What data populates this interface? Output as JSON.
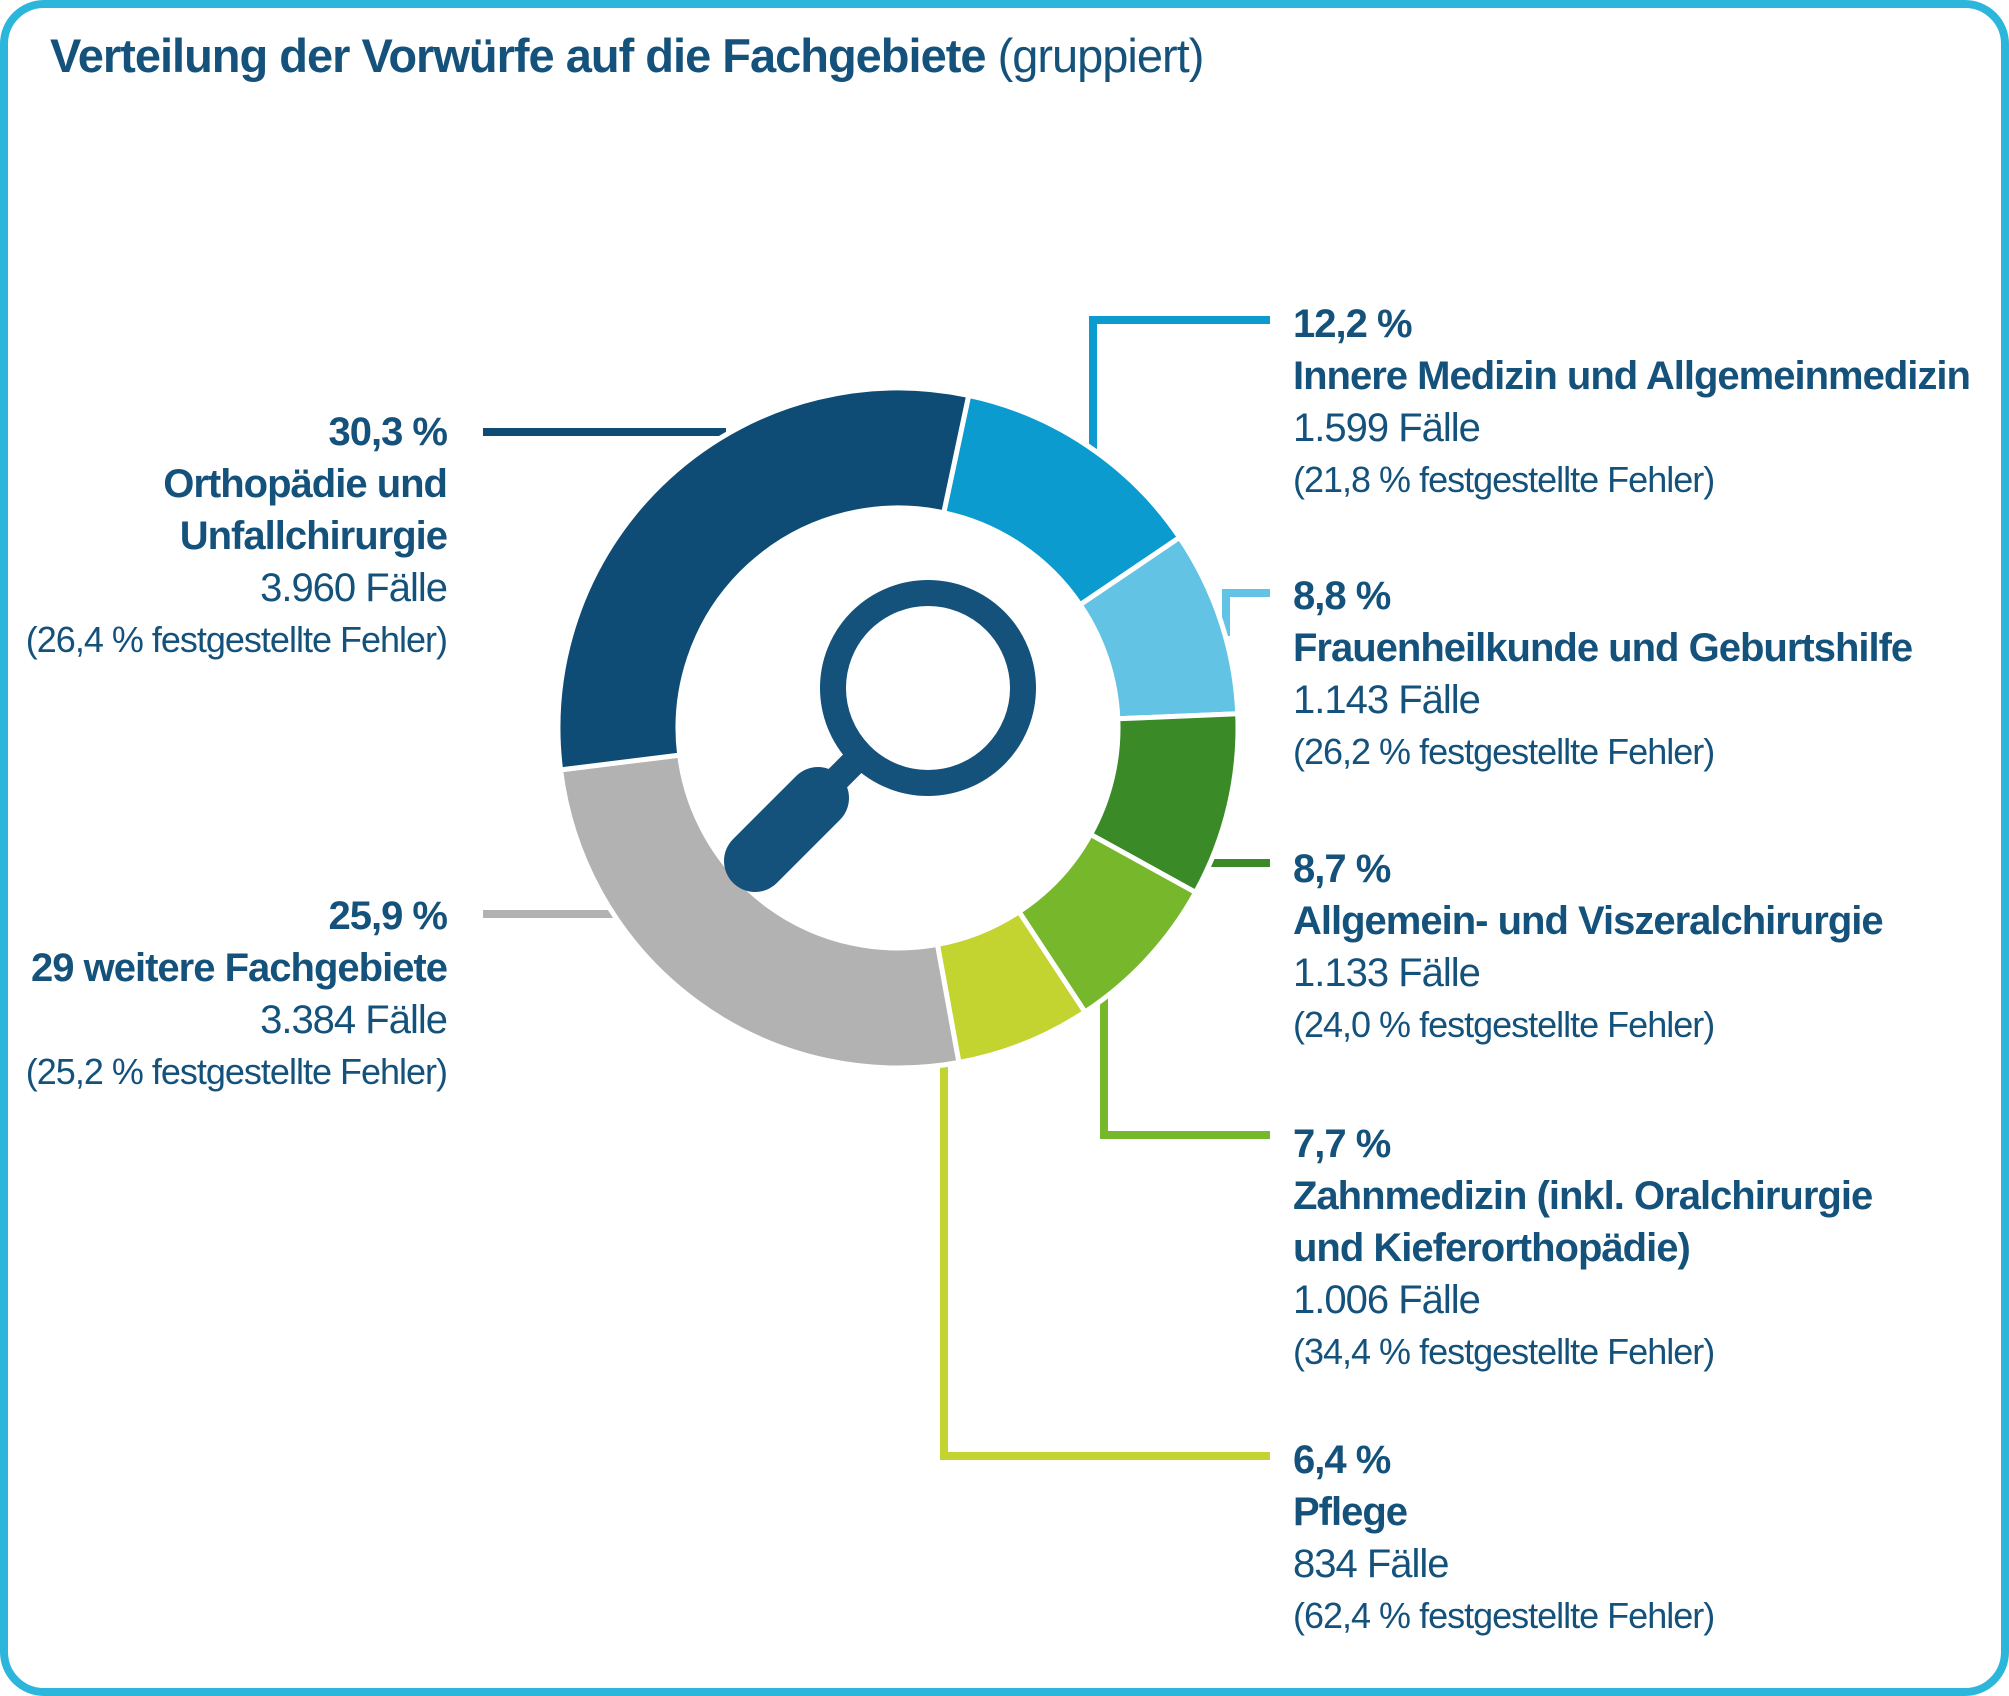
{
  "title": {
    "main": "Verteilung der Vorwürfe auf die Fachgebiete",
    "suffix": " (gruppiert)"
  },
  "card": {
    "border_color": "#2CB6DC",
    "background": "#ffffff",
    "text_color": "#14527C"
  },
  "center_icon": "magnifier-icon",
  "chart_data": {
    "type": "pie",
    "subtype": "donut",
    "title": "Verteilung der Vorwürfe auf die Fachgebiete (gruppiert)",
    "start_angle_deg": 12,
    "legend_position": "callout-labels",
    "segments": [
      {
        "label": "Innere Medizin und Allgemeinmedizin",
        "name": "Innere Medizin und Allgemeinmedizin",
        "pct": 12.2,
        "pct_label": "12,2 %",
        "cases": 1599,
        "cases_label": "1.599 Fälle",
        "error_label": "(21,8 % festgestellte Fehler)",
        "color": "#0B9BCE"
      },
      {
        "label": "Frauenheilkunde und Geburtshilfe",
        "name": "Frauenheilkunde und Geburtshilfe",
        "pct": 8.8,
        "pct_label": "8,8 %",
        "cases": 1143,
        "cases_label": "1.143 Fälle",
        "error_label": "(26,2 % festgestellte Fehler)",
        "color": "#63C3E4"
      },
      {
        "label": "Allgemein- und Viszeralchirurgie",
        "name": "Allgemein- und Viszeralchirurgie",
        "pct": 8.7,
        "pct_label": "8,7 %",
        "cases": 1133,
        "cases_label": "1.133 Fälle",
        "error_label": "(24,0 % festgestellte Fehler)",
        "color": "#3A8B28"
      },
      {
        "label": "Zahnmedizin (inkl. Oralchirurgie und Kieferorthopädie)",
        "name": "Zahnmedizin (inkl. Oralchirurgie",
        "name2": "und Kieferorthopädie)",
        "pct": 7.7,
        "pct_label": "7,7 %",
        "cases": 1006,
        "cases_label": "1.006 Fälle",
        "error_label": "(34,4 % festgestellte Fehler)",
        "color": "#77B72B"
      },
      {
        "label": "Pflege",
        "name": "Pflege",
        "pct": 6.4,
        "pct_label": "6,4 %",
        "cases": 834,
        "cases_label": "834 Fälle",
        "error_label": "(62,4 % festgestellte Fehler)",
        "color": "#C3D330"
      },
      {
        "label": "29 weitere Fachgebiete",
        "name": "29 weitere Fachgebiete",
        "pct": 25.9,
        "pct_label": "25,9 %",
        "cases": 3384,
        "cases_label": "3.384 Fälle",
        "error_label": "(25,2 % festgestellte Fehler)",
        "color": "#B2B2B2"
      },
      {
        "label": "Orthopädie und Unfallchirurgie",
        "name": "Orthopädie und",
        "name2": "Unfallchirurgie",
        "pct": 30.3,
        "pct_label": "30,3 %",
        "cases": 3960,
        "cases_label": "3.960 Fälle",
        "error_label": "(26,4 % festgestellte Fehler)",
        "color": "#0E4C75"
      }
    ]
  }
}
